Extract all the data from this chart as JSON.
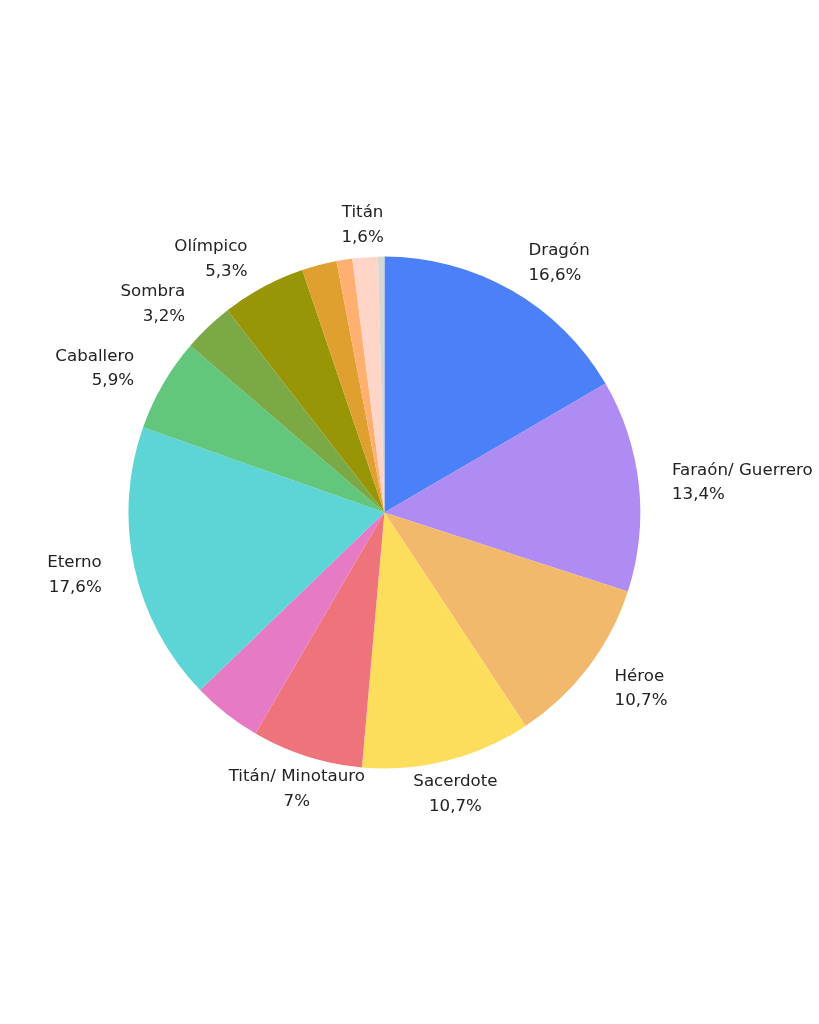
{
  "chart_data": {
    "type": "pie",
    "categories": [
      "Dragón",
      "Faraón/ Guerrero",
      "Héroe",
      "Sacerdote",
      "Titán/ Minotauro",
      null,
      "Eterno",
      "Caballero",
      "Sombra",
      "Olímpico",
      null,
      null,
      "Titán",
      null
    ],
    "values": [
      16.6,
      13.4,
      10.7,
      10.7,
      7,
      4.4,
      17.6,
      5.9,
      3.2,
      5.3,
      2.2,
      1.0,
      1.6,
      0.4
    ],
    "value_labels": [
      "16,6%",
      "13,4%",
      "10,7%",
      "10,7%",
      "7%",
      null,
      "17,6%",
      "5,9%",
      "3,2%",
      "5,3%",
      null,
      null,
      "1,6%",
      null
    ],
    "colors": [
      "#4c80f8",
      "#ae8cf4",
      "#f2b96d",
      "#fddd5c",
      "#ee737b",
      "#e77ac5",
      "#5dd5d6",
      "#62c77c",
      "#7ba945",
      "#989507",
      "#e0a030",
      "#ffb070",
      "#ffd5c8",
      "#d6d6d6"
    ]
  }
}
